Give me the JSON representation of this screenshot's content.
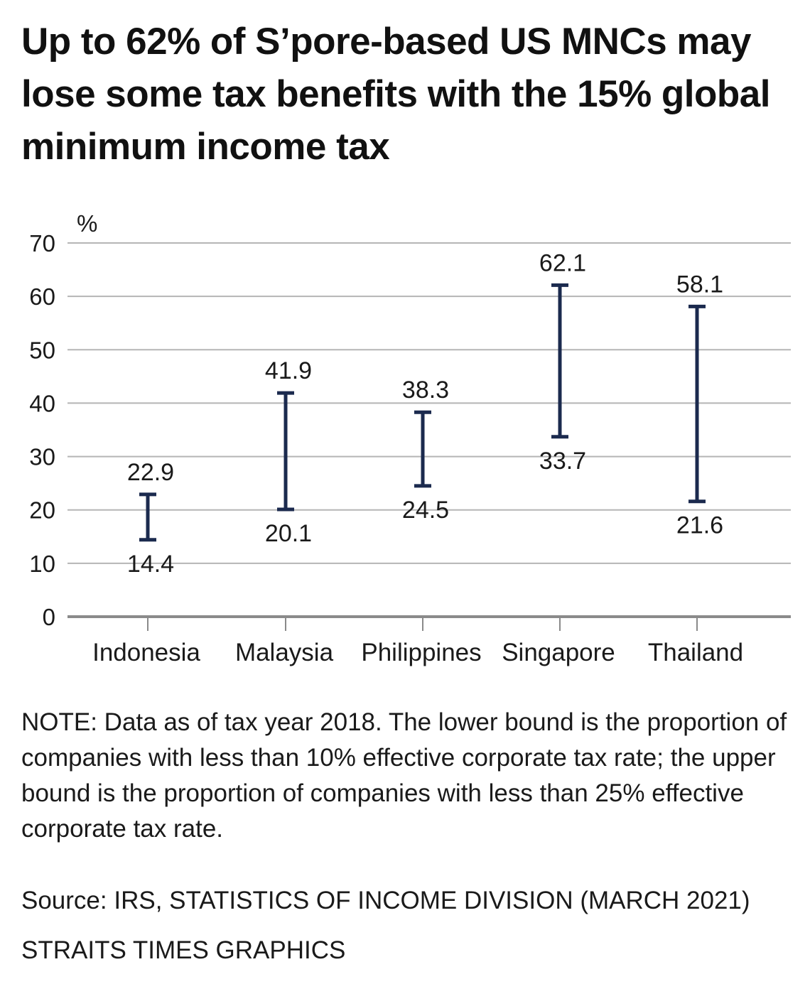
{
  "title": "Up to 62% of S’pore-based US MNCs may lose some tax benefits with the 15% global minimum income tax",
  "note": "NOTE: Data as of tax year 2018. The lower bound is the proportion of companies with less than 10% effective corporate tax rate; the upper bound is the proportion of companies with less than 25% effective corporate tax rate.",
  "source": "Source: IRS, STATISTICS OF INCOME DIVISION (MARCH 2021)",
  "credit": "STRAITS TIMES GRAPHICS",
  "colors": {
    "range_bar": "#1b2a4e",
    "gridline": "#b5b5b5",
    "axis": "#8a8a8a",
    "text": "#1a1a1a"
  },
  "chart_data": {
    "type": "range",
    "title": "Up to 62% of S’pore-based US MNCs may lose some tax benefits with the 15% global minimum income tax",
    "ylabel": "%",
    "xlabel": "",
    "ylim": [
      0,
      70
    ],
    "yticks": [
      0,
      10,
      20,
      30,
      40,
      50,
      60,
      70
    ],
    "grid": true,
    "categories": [
      "Indonesia",
      "Malaysia",
      "Philippines",
      "Singapore",
      "Thailand"
    ],
    "series": [
      {
        "name": "Lower bound (share with <10% effective corporate tax rate)",
        "values": [
          14.4,
          20.1,
          24.5,
          33.7,
          21.6
        ]
      },
      {
        "name": "Upper bound (share with <25% effective corporate tax rate)",
        "values": [
          22.9,
          41.9,
          38.3,
          62.1,
          58.1
        ]
      }
    ],
    "lower_labels": [
      "14.4",
      "20.1",
      "24.5",
      "33.7",
      "21.6"
    ],
    "upper_labels": [
      "22.9",
      "41.9",
      "38.3",
      "62.1",
      "58.1"
    ]
  }
}
